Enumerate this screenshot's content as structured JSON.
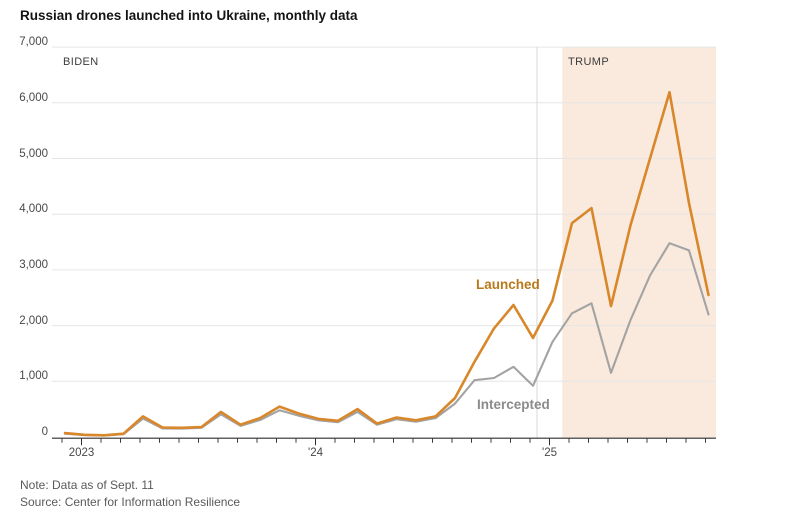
{
  "header": {
    "title": "Russian drones launched into Ukraine, monthly data"
  },
  "chart": {
    "era_labels": {
      "biden": "BIDEN",
      "trump": "TRUMP"
    },
    "series_labels": {
      "launched": "Launched",
      "intercepted": "Intercepted"
    },
    "colors": {
      "launched_line": "#d8872b",
      "launched_label": "#b9791b",
      "intercepted_line": "#a3a3a3",
      "intercepted_label": "#8b8b8b",
      "trump_shading": "#faeadd",
      "gridline": "#e6e6e6",
      "axis_line": "#2f2f2f",
      "tick": "#3c3c3c",
      "era_divider": "#d8d8d8"
    }
  },
  "footer": {
    "note": "Note: Data as of Sept. 11",
    "source": "Source: Center for Information Resilience"
  },
  "chart_data": {
    "type": "line",
    "title": "Russian drones launched into Ukraine, monthly data",
    "xlabel": "",
    "ylabel": "",
    "ylim": [
      0,
      7000
    ],
    "grid": "horizontal",
    "legend_position": "inline-labels",
    "y_ticks": [
      0,
      1000,
      2000,
      3000,
      4000,
      5000,
      6000,
      7000
    ],
    "y_tick_labels": [
      "0",
      "1,000",
      "2,000",
      "3,000",
      "4,000",
      "5,000",
      "6,000",
      "7,000"
    ],
    "x_year_ticks": [
      {
        "label": "2023",
        "month_index": 1
      },
      {
        "label": "'24",
        "month_index": 13
      },
      {
        "label": "'25",
        "month_index": 25
      }
    ],
    "shaded_region": {
      "label": "TRUMP",
      "start_month_index": 25.5,
      "extends_to": "right edge"
    },
    "unshaded_region_label": "BIDEN",
    "months": [
      "Dec 2022",
      "Jan 2023",
      "Feb 2023",
      "Mar 2023",
      "Apr 2023",
      "May 2023",
      "Jun 2023",
      "Jul 2023",
      "Aug 2023",
      "Sep 2023",
      "Oct 2023",
      "Nov 2023",
      "Dec 2023",
      "Jan 2024",
      "Feb 2024",
      "Mar 2024",
      "Apr 2024",
      "May 2024",
      "Jun 2024",
      "Jul 2024",
      "Aug 2024",
      "Sep 2024",
      "Oct 2024",
      "Nov 2024",
      "Dec 2024",
      "Jan 2025",
      "Feb 2025",
      "Mar 2025",
      "Apr 2025",
      "May 2025",
      "Jun 2025",
      "Jul 2025",
      "Aug 2025",
      "Sep 2025"
    ],
    "series": [
      {
        "name": "Launched",
        "color": "#d8872b",
        "values": [
          70,
          40,
          30,
          60,
          370,
          170,
          165,
          180,
          450,
          220,
          340,
          545,
          420,
          325,
          290,
          500,
          240,
          350,
          300,
          370,
          700,
          1350,
          1950,
          2370,
          1780,
          2450,
          3840,
          4110,
          2350,
          3800,
          5000,
          6190,
          4200,
          2550
        ]
      },
      {
        "name": "Intercepted",
        "color": "#a3a3a3",
        "values": [
          60,
          35,
          25,
          50,
          330,
          155,
          150,
          165,
          405,
          200,
          305,
          480,
          380,
          300,
          265,
          450,
          220,
          320,
          275,
          340,
          600,
          1020,
          1060,
          1260,
          920,
          1710,
          2220,
          2400,
          1150,
          2100,
          2900,
          3480,
          3350,
          2200
        ]
      }
    ]
  }
}
